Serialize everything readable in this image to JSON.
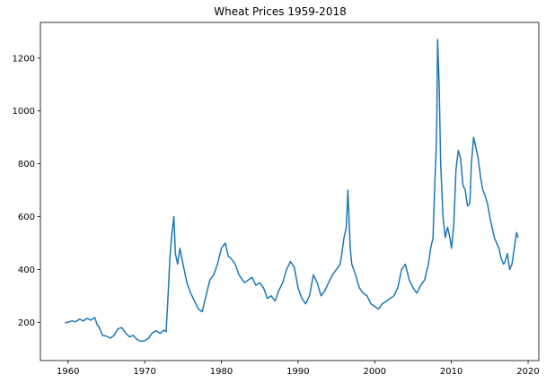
{
  "chart_data": {
    "type": "line",
    "title": "Wheat Prices 1959-2018",
    "xlabel": "",
    "ylabel": "",
    "xlim": [
      1956.4,
      2021.4
    ],
    "ylim": [
      55,
      1335
    ],
    "x_ticks": [
      1960,
      1970,
      1980,
      1990,
      2000,
      2010,
      2020
    ],
    "y_ticks": [
      200,
      400,
      600,
      800,
      1000,
      1200
    ],
    "grid": false,
    "legend": "none",
    "line_color": "#1f77b4",
    "series": [
      {
        "x": [
          1959.6,
          1960.0,
          1960.5,
          1961.0,
          1961.5,
          1962.0,
          1962.5,
          1963.0,
          1963.5,
          1963.8,
          1964.0,
          1964.5,
          1965.0,
          1965.5,
          1966.0,
          1966.5,
          1967.0,
          1967.5,
          1968.0,
          1968.5,
          1969.0,
          1969.5,
          1970.0,
          1970.5,
          1971.0,
          1971.5,
          1972.0,
          1972.5,
          1972.8,
          1973.0,
          1973.3,
          1973.5,
          1973.8,
          1974.0,
          1974.3,
          1974.6,
          1975.0,
          1975.5,
          1976.0,
          1976.5,
          1977.0,
          1977.5,
          1978.0,
          1978.5,
          1979.0,
          1979.5,
          1980.0,
          1980.5,
          1980.9,
          1981.3,
          1981.8,
          1982.3,
          1983.0,
          1983.5,
          1984.0,
          1984.5,
          1985.0,
          1985.5,
          1986.0,
          1986.5,
          1987.0,
          1987.5,
          1988.0,
          1988.5,
          1989.0,
          1989.5,
          1990.0,
          1990.5,
          1991.0,
          1991.5,
          1992.0,
          1992.5,
          1993.0,
          1993.5,
          1994.0,
          1994.5,
          1995.0,
          1995.5,
          1996.0,
          1996.3,
          1996.5,
          1996.8,
          1997.0,
          1997.5,
          1998.0,
          1998.5,
          1999.0,
          1999.5,
          2000.0,
          2000.5,
          2001.0,
          2001.5,
          2002.0,
          2002.5,
          2003.0,
          2003.5,
          2004.0,
          2004.5,
          2005.0,
          2005.5,
          2006.0,
          2006.5,
          2007.0,
          2007.3,
          2007.6,
          2007.8,
          2008.0,
          2008.1,
          2008.2,
          2008.4,
          2008.6,
          2008.9,
          2009.2,
          2009.5,
          2009.8,
          2010.0,
          2010.3,
          2010.6,
          2010.9,
          2011.2,
          2011.5,
          2011.8,
          2012.1,
          2012.4,
          2012.6,
          2012.9,
          2013.2,
          2013.5,
          2013.8,
          2014.1,
          2014.4,
          2014.7,
          2015.0,
          2015.3,
          2015.6,
          2015.9,
          2016.2,
          2016.5,
          2016.8,
          2017.0,
          2017.3,
          2017.6,
          2017.9,
          2018.2,
          2018.5,
          2018.7
        ],
        "y": [
          198,
          200,
          205,
          202,
          212,
          205,
          215,
          208,
          218,
          190,
          185,
          150,
          148,
          140,
          150,
          175,
          180,
          160,
          145,
          150,
          135,
          128,
          130,
          140,
          160,
          168,
          158,
          170,
          165,
          270,
          450,
          520,
          600,
          460,
          420,
          480,
          420,
          350,
          310,
          280,
          250,
          240,
          300,
          360,
          380,
          420,
          480,
          500,
          450,
          440,
          420,
          380,
          350,
          360,
          370,
          340,
          350,
          330,
          290,
          300,
          280,
          320,
          350,
          400,
          430,
          410,
          330,
          290,
          270,
          300,
          380,
          350,
          300,
          320,
          350,
          380,
          400,
          420,
          520,
          560,
          700,
          480,
          420,
          380,
          330,
          310,
          300,
          270,
          260,
          250,
          270,
          280,
          290,
          300,
          330,
          400,
          420,
          360,
          330,
          310,
          340,
          360,
          420,
          480,
          520,
          700,
          850,
          960,
          1270,
          1100,
          800,
          600,
          520,
          560,
          520,
          480,
          560,
          780,
          850,
          820,
          720,
          700,
          640,
          650,
          800,
          900,
          860,
          820,
          750,
          700,
          680,
          650,
          600,
          560,
          520,
          500,
          480,
          440,
          420,
          430,
          460,
          400,
          420,
          480,
          540,
          520
        ]
      }
    ]
  }
}
